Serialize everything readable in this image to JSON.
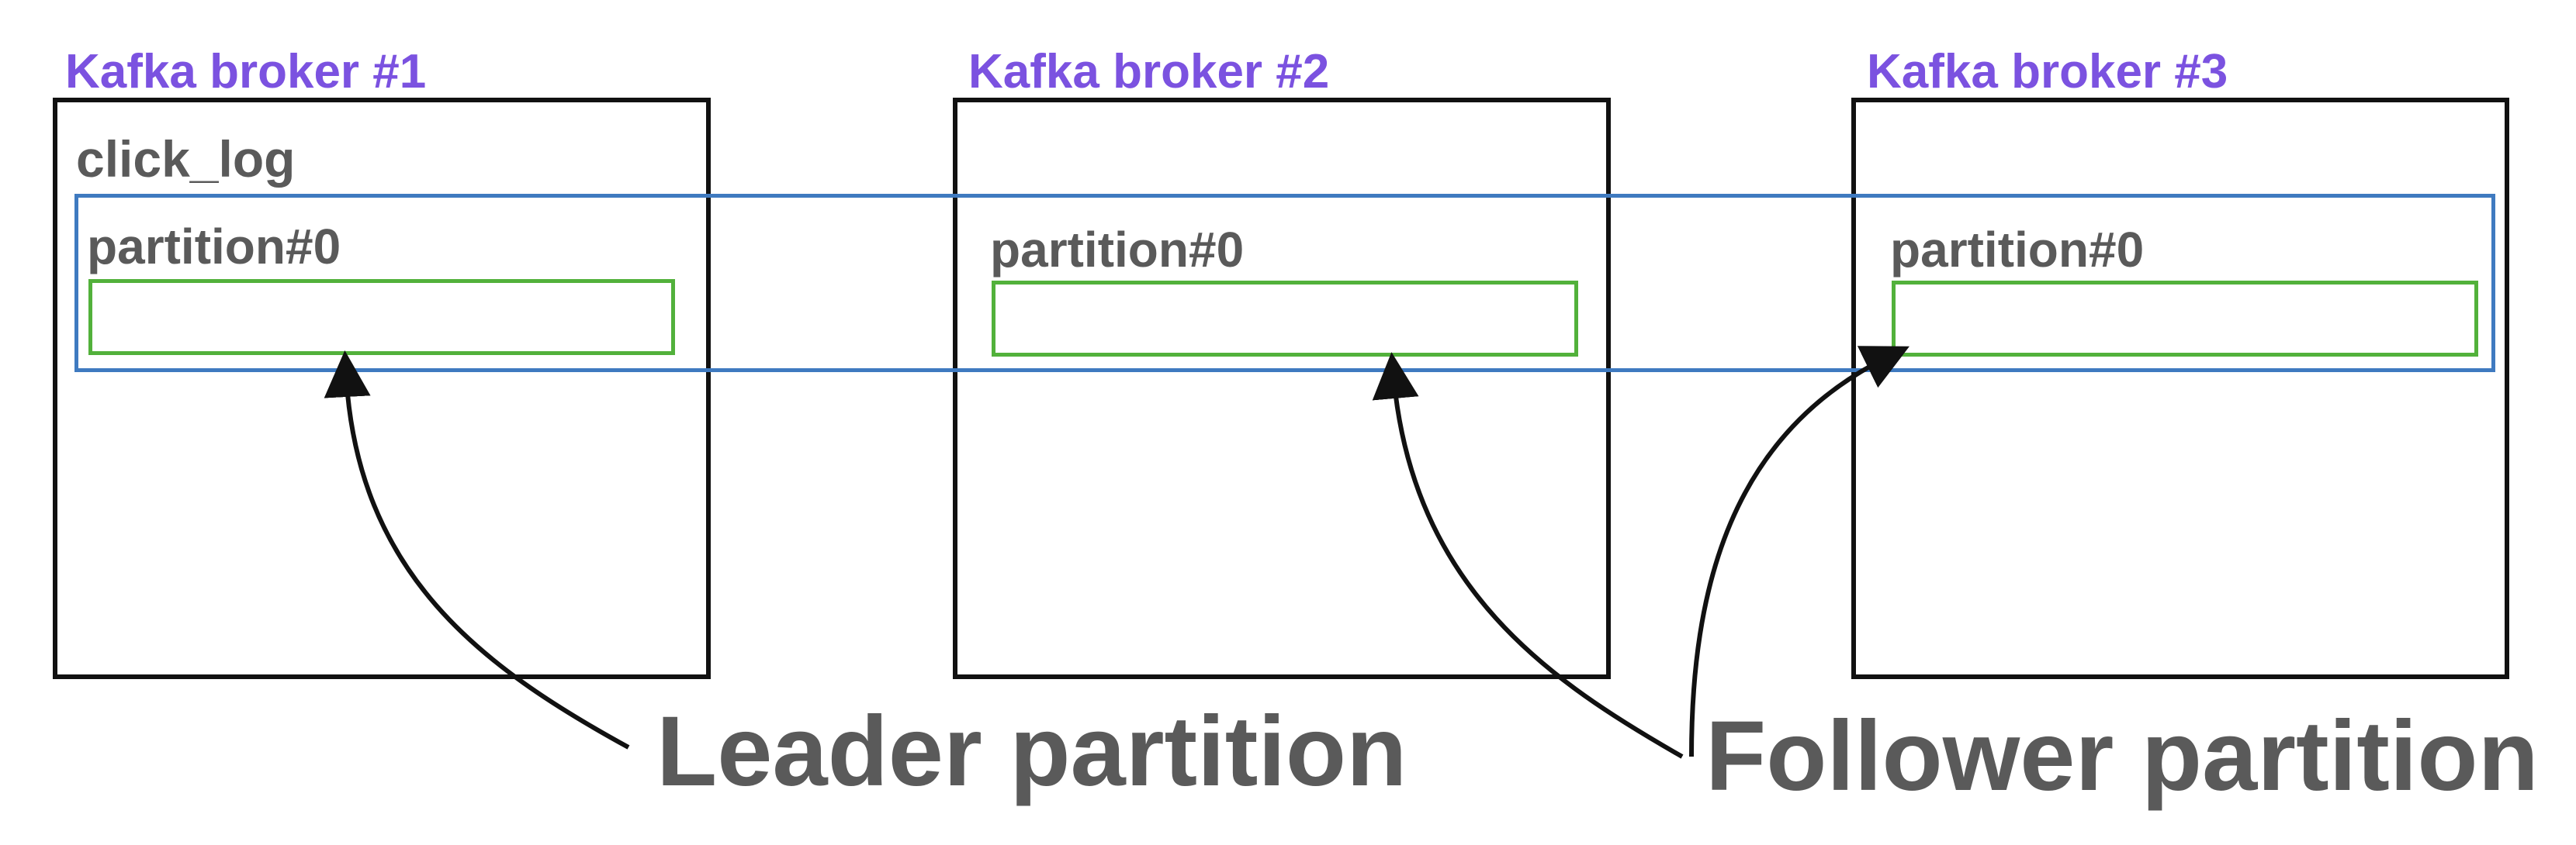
{
  "brokers": [
    {
      "title": "Kafka broker #1",
      "topic": "click_log",
      "partition": "partition#0"
    },
    {
      "title": "Kafka broker #2",
      "topic": "",
      "partition": "partition#0"
    },
    {
      "title": "Kafka broker #3",
      "topic": "",
      "partition": "partition#0"
    }
  ],
  "callouts": {
    "leader": "Leader partition",
    "follower": "Follower partition"
  },
  "colors": {
    "broker_title": "#7b52e0",
    "partition_box": "#52b13b",
    "group_box": "#3f7ac0",
    "text": "#5a5a5a",
    "stroke": "#111111"
  }
}
